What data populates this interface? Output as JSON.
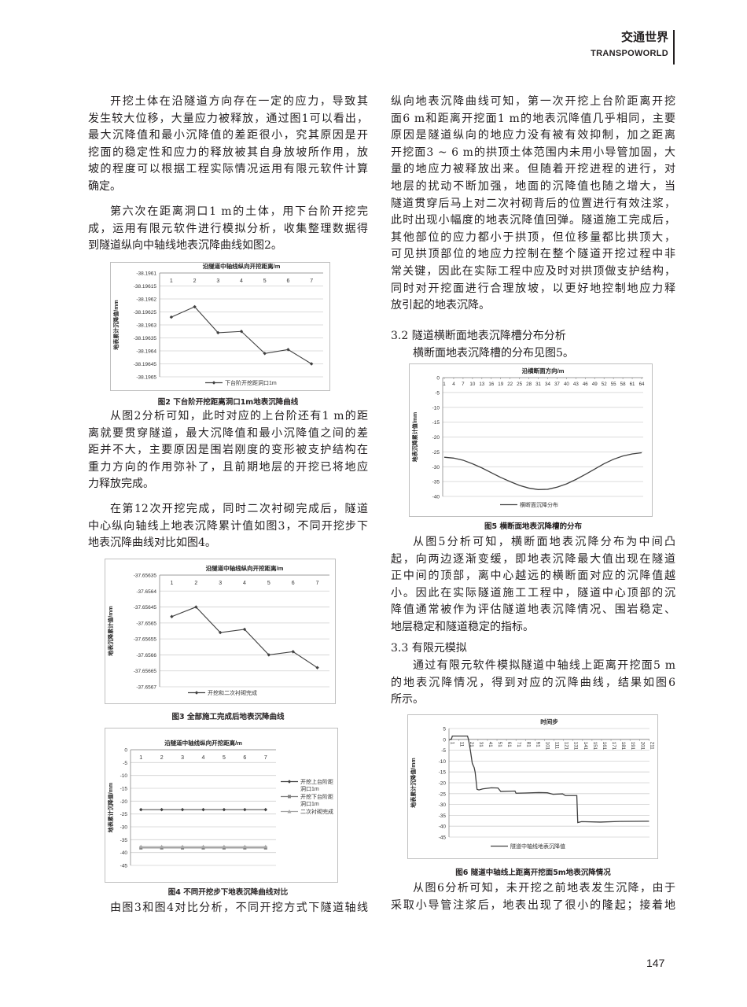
{
  "header": {
    "title_cn": "交通世界",
    "title_en": "TRANSPOWORLD"
  },
  "page_number": "147",
  "left_column": {
    "p1": [
      "开挖土体在沿隧道方向存在一定的应力，导致其",
      "发生较大位移，大量应力被释放，通过图1可以看出，",
      "最大沉降值和最小沉降值的差距很小，究其原因是开",
      "挖面的稳定性和应力的释放被其自身放坡所作用，放",
      "坡的程度可以根据工程实际情况运用有限元软件计算",
      "确定。"
    ],
    "p2": [
      "第六次在距离洞口1 m的土体，用下台阶开挖完",
      "成，运用有限元软件进行模拟分析，收集整理数据得",
      "到隧道纵向中轴线地表沉降曲线如图2。"
    ],
    "p3": [
      "从图2分析可知，此时对应的上台阶还有1 m的距",
      "离就要贯穿隧道，最大沉降值和最小沉降值之间的差",
      "距并不大，主要原因是围岩刚度的变形被支护结构在",
      "重力方向的作用弥补了，且前期地层的开挖已将地应",
      "力释放完成。"
    ],
    "p4": [
      "在第12次开挖完成，同时二次衬砌完成后，隧道",
      "中心纵向轴线上地表沉降累计值如图3，不同开挖步下",
      "地表沉降曲线对比如图4。"
    ],
    "p5": [
      "由图3和图4对比分析，不同开挖方式下隧道轴线"
    ]
  },
  "right_column": {
    "p1": [
      "纵向地表沉降曲线可知，第一次开挖上台阶距离开挖",
      "面6 m和距离开挖面1 m的地表沉降值几乎相同，主要",
      "原因是隧道纵向的地应力没有被有效抑制，加之距离",
      "开挖面3 ~ 6 m的拱顶土体范围内未用小导管加固，大",
      "量的地应力被释放出来。但随着开挖进程的进行，对",
      "地层的扰动不断加强，地面的沉降值也随之增大，当",
      "隧道贯穿后马上对二次衬砌背后的位置进行有效注浆，",
      "此时出现小幅度的地表沉降值回弹。隧道施工完成后，",
      "其他部位的应力都小于拱顶，但位移量都比拱顶大，",
      "可见拱顶部位的地应力控制在整个隧道开挖过程中非",
      "常关键，因此在实际工程中应及时对拱顶做支护结构，",
      "同时对开挖面进行合理放坡，以更好地控制地应力释",
      "放引起的地表沉降。"
    ],
    "heading_32": "3.2 隧道横断面地表沉降槽分布分析",
    "p2": [
      "横断面地表沉降槽的分布见图5。"
    ],
    "p3": [
      "从图5分析可知，横断面地表沉降分布为中间凸",
      "起，向两边逐渐变缓，即地表沉降最大值出现在隧道",
      "正中间的顶部，离中心越远的横断面对应的沉降值越",
      "小。因此在实际隧道施工工程中，隧道中心顶部的沉",
      "降值通常被作为评估隧道地表沉降情况、围岩稳定、",
      "地层稳定和隧道稳定的指标。"
    ],
    "heading_33": "3.3 有限元模拟",
    "p4": [
      "通过有限元软件模拟隧道中轴线上距离开挖面5 m",
      "的地表沉降情况，得到对应的沉降曲线，结果如图6",
      "所示。"
    ],
    "p5": [
      "从图6分析可知，未开挖之前地表发生沉降，由于",
      "采取小导管注浆后，地表出现了很小的隆起；接着地"
    ]
  },
  "captions": {
    "fig2": "图2  下台阶开挖距离洞口1m地表沉降曲线",
    "fig3": "图3  全部施工完成后地表沉降曲线",
    "fig4": "图4  不同开挖步下地表沉降曲线对比",
    "fig5": "图5  横断面地表沉降槽的分布",
    "fig6": "图6  隧道中轴线上距离开挖面5m地表沉降情况"
  },
  "chart_data": [
    {
      "id": "fig2",
      "type": "line",
      "title": "沿隧道中轴线纵向开挖距离/m",
      "ylabel": "地表累计沉降值/mm",
      "categories": [
        "1",
        "2",
        "3",
        "4",
        "5",
        "6",
        "7"
      ],
      "ylim": [
        -38.1965,
        -38.1961
      ],
      "yticks": [
        "-38.1961",
        "-38.19615",
        "-38.1962",
        "-38.19625",
        "-38.1963",
        "-38.19635",
        "-38.1964",
        "-38.19645",
        "-38.1965"
      ],
      "grid": true,
      "legend": "bottom",
      "series": [
        {
          "name": "下台阶开挖距洞口1m",
          "values": [
            -38.19627,
            -38.19623,
            -38.19633,
            -38.196325,
            -38.19641,
            -38.196395,
            -38.19645
          ],
          "color": "#404040",
          "marker": "diamond"
        }
      ]
    },
    {
      "id": "fig3",
      "type": "line",
      "title": "沿隧道中轴线纵向开挖距离/m",
      "ylabel": "地表沉降累计值/mm",
      "categories": [
        "1",
        "2",
        "3",
        "4",
        "5",
        "6",
        "7"
      ],
      "ylim": [
        -37.6567,
        -37.65635
      ],
      "yticks": [
        "-37.65635",
        "-37.6564",
        "-37.65645",
        "-37.6565",
        "-37.65655",
        "-37.6566",
        "-37.65665",
        "-37.6567"
      ],
      "grid": true,
      "legend": "bottom",
      "series": [
        {
          "name": "开挖和二次衬砌完成",
          "values": [
            -37.65648,
            -37.65645,
            -37.65653,
            -37.65652,
            -37.6566,
            -37.65659,
            -37.65664
          ],
          "color": "#404040",
          "marker": "diamond"
        }
      ]
    },
    {
      "id": "fig4",
      "type": "line",
      "title": "沿隧道中轴线纵向开挖距离/m",
      "ylabel": "地表累计沉降值/mm",
      "categories": [
        "1",
        "2",
        "3",
        "4",
        "5",
        "6",
        "7"
      ],
      "ylim": [
        -45,
        0
      ],
      "yticks": [
        "0",
        "-5",
        "-10",
        "-15",
        "-20",
        "-25",
        "-30",
        "-35",
        "-40",
        "-45"
      ],
      "grid": true,
      "legend": "right",
      "series": [
        {
          "name": "开挖上台阶距洞口1m",
          "values": [
            -23.3,
            -23.3,
            -23.3,
            -23.3,
            -23.3,
            -23.3,
            -23.3
          ],
          "color": "#404040",
          "marker": "diamond"
        },
        {
          "name": "开挖下台阶距洞口1m",
          "values": [
            -38.2,
            -38.2,
            -38.2,
            -38.2,
            -38.2,
            -38.2,
            -38.2
          ],
          "color": "#808080",
          "marker": "square"
        },
        {
          "name": "二次衬砌完成",
          "values": [
            -37.7,
            -37.7,
            -37.7,
            -37.7,
            -37.7,
            -37.7,
            -37.7
          ],
          "color": "#a6a6a6",
          "marker": "triangle"
        }
      ]
    },
    {
      "id": "fig5",
      "type": "line",
      "title": "沿横断面方向/m",
      "ylabel": "地表沉降累计值/mm",
      "xlim": [
        1,
        64
      ],
      "xticks": [
        "1",
        "4",
        "7",
        "10",
        "13",
        "16",
        "19",
        "22",
        "25",
        "28",
        "31",
        "34",
        "37",
        "40",
        "43",
        "46",
        "49",
        "52",
        "55",
        "58",
        "61",
        "64"
      ],
      "ylim": [
        -40,
        0
      ],
      "yticks": [
        "0",
        "-5",
        "-10",
        "-15",
        "-20",
        "-25",
        "-30",
        "-35",
        "-40"
      ],
      "grid": true,
      "legend": "bottom",
      "series": [
        {
          "name": "横断面沉降分布",
          "color": "#404040",
          "x": [
            1,
            4,
            7,
            10,
            13,
            16,
            19,
            22,
            25,
            28,
            31,
            34,
            37,
            40,
            43,
            46,
            49,
            52,
            55,
            58,
            61,
            64
          ],
          "values": [
            -26.8,
            -27.1,
            -27.8,
            -29.0,
            -30.4,
            -32.0,
            -33.6,
            -35.0,
            -36.3,
            -37.2,
            -37.7,
            -37.6,
            -36.9,
            -35.8,
            -34.3,
            -32.6,
            -30.8,
            -29.0,
            -27.5,
            -26.4,
            -25.7,
            -25.3
          ]
        }
      ]
    },
    {
      "id": "fig6",
      "type": "line",
      "title": "时间步",
      "ylabel": "地表累计沉降值/mm",
      "xlim": [
        1,
        211
      ],
      "xticks": [
        "1",
        "11",
        "21",
        "31",
        "41",
        "51",
        "61",
        "71",
        "81",
        "91",
        "101",
        "111",
        "121",
        "131",
        "141",
        "151",
        "161",
        "171",
        "181",
        "191",
        "201",
        "211"
      ],
      "ylim": [
        -45,
        5
      ],
      "yticks": [
        "5",
        "0",
        "-5",
        "-10",
        "-15",
        "-20",
        "-25",
        "-30",
        "-35",
        "-40",
        "-45"
      ],
      "grid": true,
      "legend": "bottom",
      "series": [
        {
          "name": "隧道中轴线地表沉降值",
          "color": "#404040",
          "x": [
            1,
            3,
            4,
            20,
            21,
            23,
            25,
            27,
            28,
            30,
            32,
            36,
            45,
            52,
            55,
            70,
            71,
            80,
            95,
            104,
            110,
            120,
            123,
            135,
            136,
            140,
            160,
            180,
            211
          ],
          "values": [
            0,
            0,
            1.5,
            1.5,
            0,
            -5,
            -11,
            -13,
            -15,
            -23,
            -23.3,
            -22.8,
            -22.3,
            -22.4,
            -24,
            -23.8,
            -24.8,
            -24.7,
            -24.5,
            -24.6,
            -25.3,
            -25.1,
            -25.9,
            -25.9,
            -38.3,
            -37.9,
            -38.1,
            -37.8,
            -37.7
          ]
        }
      ]
    }
  ]
}
